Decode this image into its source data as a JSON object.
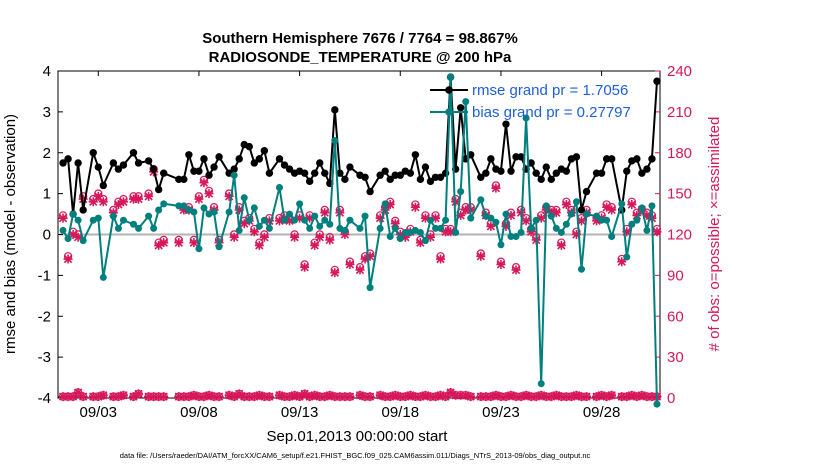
{
  "chart_data": {
    "type": "line",
    "title": "Southern Hemisphere 7676 / 7764 = 98.867%",
    "subtitle": "RADIOSONDE_TEMPERATURE @ 200 hPa",
    "xlabel": "Sep.01,2013 00:00:00 start",
    "ylabel": "rmse and bias (model - observation)",
    "ylabel_right": "# of obs: o=possible; ×=assimilated",
    "footnote": "data file: /Users/raeder/DAI/ATM_forcXX/CAM6_setup/f.e21.FHIST_BGC.f09_025.CAM6assim.011/Diags_NTrS_2013-09/obs_diag_output.nc",
    "xlim": [
      1.0,
      30.9
    ],
    "ylim": [
      -4,
      4
    ],
    "ylim_right": [
      0,
      240
    ],
    "x_ticks": [
      3,
      8,
      13,
      18,
      23,
      28
    ],
    "x_tick_labels": [
      "09/03",
      "09/08",
      "09/13",
      "09/18",
      "09/23",
      "09/28"
    ],
    "y_ticks": [
      -4,
      -3,
      -2,
      -1,
      0,
      1,
      2,
      3,
      4
    ],
    "y_tick_labels": [
      "-4",
      "-3",
      "-2",
      "-1",
      "0",
      "1",
      "2",
      "3",
      "4"
    ],
    "y_ticks_right": [
      0,
      30,
      60,
      90,
      120,
      150,
      180,
      210,
      240
    ],
    "y_tick_labels_right": [
      "0",
      "30",
      "60",
      "90",
      "120",
      "150",
      "180",
      "210",
      "240"
    ],
    "legend_position": "top-right",
    "grid": false,
    "colors": {
      "rmse": "#000000",
      "bias": "#007f7f",
      "obs": "#d6185b",
      "zero_line": "#b3b3b3"
    },
    "series": [
      {
        "name": "rmse grand pr = 1.7056",
        "x": [
          1.25,
          1.5,
          1.75,
          2,
          2.25,
          2.75,
          3,
          3.25,
          3.75,
          4,
          4.25,
          4.75,
          5,
          5.5,
          5.75,
          6,
          6.25,
          7,
          7.25,
          7.5,
          7.75,
          8,
          8.25,
          8.5,
          8.75,
          9,
          9.5,
          9.75,
          10,
          10.25,
          10.5,
          10.75,
          11,
          11.25,
          11.5,
          12,
          12.25,
          12.5,
          12.75,
          13,
          13.25,
          13.5,
          13.75,
          14,
          14.25,
          14.5,
          14.75,
          15,
          15.25,
          15.5,
          16,
          16.25,
          16.5,
          17,
          17.25,
          17.5,
          17.75,
          18,
          18.25,
          18.5,
          18.75,
          19,
          19.25,
          19.5,
          19.75,
          20,
          20.25,
          20.5,
          20.75,
          21,
          21.25,
          21.5,
          22,
          22.25,
          22.5,
          22.75,
          23,
          23.25,
          23.5,
          23.75,
          24,
          24.25,
          24.5,
          24.75,
          25,
          25.25,
          25.5,
          25.75,
          26,
          26.25,
          26.5,
          26.75,
          27,
          27.25,
          27.75,
          28,
          28.25,
          28.5,
          29,
          29.25,
          29.5,
          29.75,
          30,
          30.25,
          30.5,
          30.75
        ],
        "y": [
          1.75,
          1.85,
          0.5,
          1.75,
          0.6,
          2.0,
          1.65,
          1.2,
          1.75,
          1.6,
          1.7,
          2.0,
          1.75,
          1.8,
          1.6,
          1.1,
          1.5,
          1.35,
          1.35,
          1.95,
          1.55,
          1.55,
          1.85,
          1.45,
          1.65,
          1.9,
          1.5,
          1.6,
          1.85,
          2.2,
          2.15,
          1.75,
          1.85,
          2.05,
          1.5,
          1.85,
          1.7,
          1.6,
          1.5,
          1.55,
          1.5,
          1.3,
          1.5,
          1.75,
          1.5,
          1.25,
          3.05,
          1.5,
          1.35,
          1.65,
          1.45,
          1.4,
          1.05,
          1.45,
          1.55,
          1.35,
          1.45,
          1.45,
          1.55,
          1.5,
          1.95,
          1.35,
          1.65,
          1.3,
          1.4,
          1.4,
          1.5,
          3.85,
          1.6,
          3.1,
          1.85,
          1.95,
          1.4,
          1.5,
          1.85,
          1.6,
          1.55,
          2.7,
          1.55,
          1.9,
          1.9,
          1.6,
          1.75,
          1.5,
          1.35,
          1.65,
          1.35,
          1.5,
          1.6,
          1.55,
          1.85,
          1.9,
          0.6,
          1.05,
          1.5,
          1.5,
          1.85,
          1.85,
          0.6,
          1.55,
          1.8,
          1.85,
          1.5,
          1.6,
          1.85,
          3.75
        ]
      },
      {
        "name": "bias grand pr = 0.27797",
        "x": [
          1.25,
          1.5,
          1.75,
          2,
          2.25,
          2.75,
          3,
          3.25,
          3.75,
          4,
          4.25,
          4.75,
          5,
          5.5,
          5.75,
          6,
          6.25,
          7,
          7.25,
          7.5,
          7.75,
          8,
          8.25,
          8.5,
          8.75,
          9,
          9.5,
          9.75,
          10,
          10.25,
          10.5,
          10.75,
          11,
          11.25,
          11.5,
          12,
          12.25,
          12.5,
          12.75,
          13,
          13.25,
          13.5,
          13.75,
          14,
          14.25,
          14.5,
          14.75,
          15,
          15.25,
          15.5,
          16,
          16.25,
          16.5,
          17,
          17.25,
          17.5,
          17.75,
          18,
          18.25,
          18.5,
          18.75,
          19,
          19.25,
          19.5,
          19.75,
          20,
          20.25,
          20.5,
          20.75,
          21,
          21.25,
          21.5,
          22,
          22.25,
          22.5,
          22.75,
          23,
          23.25,
          23.5,
          23.75,
          24,
          24.25,
          24.5,
          24.75,
          25,
          25.25,
          25.5,
          25.75,
          26,
          26.25,
          26.5,
          26.75,
          27,
          27.25,
          27.75,
          28,
          28.25,
          28.5,
          29,
          29.25,
          29.5,
          29.75,
          30,
          30.25,
          30.5,
          30.75
        ],
        "y": [
          0.1,
          -0.1,
          0.5,
          0.35,
          -0.15,
          0.35,
          0.4,
          -1.05,
          0.45,
          0.15,
          0.35,
          0.25,
          0.15,
          0.45,
          0.15,
          0.6,
          0.75,
          0.7,
          0.7,
          0.6,
          0.55,
          -0.35,
          0.65,
          0.5,
          0.55,
          -0.3,
          0.55,
          1.45,
          0.1,
          0.9,
          0.35,
          0.65,
          0.2,
          0.35,
          0.15,
          1.15,
          0.35,
          0.5,
          0.35,
          0.75,
          0.35,
          0.15,
          0.45,
          0.2,
          0.35,
          0.25,
          2.3,
          0.15,
          0.1,
          0.35,
          0.15,
          0.45,
          -1.3,
          0.15,
          0.75,
          -0.05,
          0.15,
          -0.1,
          0.05,
          0.05,
          0.1,
          0.05,
          -0.15,
          0.35,
          0.15,
          0.15,
          0.35,
          3.85,
          0.05,
          1.05,
          3.25,
          0.4,
          0.85,
          0.45,
          0.4,
          0.3,
          -0.25,
          0.5,
          -0.05,
          -0.05,
          0.05,
          2.85,
          0.15,
          0.35,
          -3.65,
          0.7,
          0.45,
          0.15,
          0.05,
          0.25,
          0.5,
          0.8,
          -0.85,
          0.5,
          0.45,
          0.35,
          0.35,
          -0.05,
          0.75,
          -0.55,
          0.25,
          0.35,
          0.65,
          0.1,
          0.7,
          -4.15
        ]
      }
    ],
    "obs_counts": {
      "x": [
        1.25,
        1.5,
        1.75,
        2,
        2.25,
        2.75,
        3,
        3.25,
        3.75,
        4,
        4.25,
        4.75,
        5,
        5.5,
        5.75,
        6,
        6.25,
        7,
        7.25,
        7.5,
        7.75,
        8,
        8.25,
        8.5,
        8.75,
        9,
        9.5,
        9.75,
        10,
        10.25,
        10.5,
        10.75,
        11,
        11.25,
        11.5,
        12,
        12.25,
        12.5,
        12.75,
        13,
        13.25,
        13.5,
        13.75,
        14,
        14.25,
        14.5,
        14.75,
        15,
        15.25,
        15.5,
        16,
        16.25,
        16.5,
        17,
        17.25,
        17.5,
        17.75,
        18,
        18.25,
        18.5,
        18.75,
        19,
        19.25,
        19.5,
        19.75,
        20,
        20.25,
        20.5,
        20.75,
        21,
        21.25,
        21.5,
        22,
        22.25,
        22.5,
        22.75,
        23,
        23.25,
        23.5,
        23.75,
        24,
        24.25,
        24.5,
        24.75,
        25,
        25.25,
        25.5,
        25.75,
        26,
        26.25,
        26.5,
        26.75,
        27,
        27.25,
        27.75,
        28,
        28.25,
        28.5,
        29,
        29.25,
        29.5,
        29.75,
        30,
        30.25,
        30.5,
        30.75
      ],
      "possible_high": [
        134,
        104,
        122,
        120,
        148,
        146,
        150,
        146,
        138,
        144,
        146,
        148,
        148,
        150,
        168,
        114,
        116,
        116,
        140,
        140,
        116,
        148,
        160,
        152,
        140,
        116,
        150,
        120,
        140,
        130,
        132,
        124,
        114,
        120,
        132,
        132,
        134,
        132,
        120,
        134,
        98,
        134,
        114,
        120,
        138,
        118,
        94,
        138,
        122,
        100,
        96,
        104,
        106,
        134,
        140,
        144,
        130,
        122,
        120,
        124,
        142,
        116,
        134,
        120,
        134,
        104,
        124,
        124,
        146,
        136,
        140,
        140,
        106,
        136,
        128,
        156,
        100,
        128,
        136,
        96,
        138,
        132,
        124,
        118,
        134,
        140,
        138,
        138,
        114,
        144,
        138,
        122,
        132,
        138,
        132,
        134,
        142,
        140,
        102,
        124,
        144,
        136,
        138,
        136,
        134,
        124
      ],
      "assimilated_high": [
        132,
        102,
        120,
        118,
        146,
        144,
        148,
        144,
        136,
        142,
        144,
        146,
        146,
        148,
        166,
        112,
        114,
        114,
        138,
        138,
        114,
        146,
        158,
        150,
        138,
        114,
        148,
        118,
        138,
        128,
        130,
        122,
        112,
        118,
        130,
        130,
        132,
        130,
        118,
        132,
        96,
        132,
        112,
        118,
        136,
        116,
        92,
        136,
        120,
        98,
        94,
        102,
        104,
        132,
        138,
        142,
        128,
        120,
        118,
        122,
        140,
        114,
        132,
        118,
        132,
        102,
        122,
        122,
        144,
        134,
        138,
        138,
        104,
        134,
        126,
        154,
        98,
        126,
        134,
        94,
        136,
        130,
        122,
        116,
        132,
        138,
        136,
        136,
        112,
        142,
        136,
        120,
        130,
        136,
        130,
        132,
        140,
        138,
        100,
        122,
        142,
        134,
        138,
        134,
        132,
        122
      ],
      "possible_low": [
        1,
        1,
        1,
        4,
        1,
        1,
        1,
        2,
        1,
        1,
        2,
        1,
        3,
        1,
        1,
        1,
        1,
        1,
        1,
        1,
        2,
        1,
        1,
        2,
        1,
        1,
        2,
        1,
        3,
        1,
        1,
        1,
        2,
        1,
        1,
        2,
        1,
        1,
        2,
        1,
        3,
        1,
        2,
        1,
        1,
        2,
        1,
        1,
        1,
        1,
        2,
        1,
        1,
        2,
        1,
        1,
        2,
        1,
        1,
        2,
        1,
        1,
        2,
        1,
        1,
        2,
        1,
        4,
        2,
        2,
        2,
        1,
        1,
        1,
        1,
        2,
        1,
        1,
        2,
        1,
        1,
        2,
        1,
        1,
        2,
        1,
        1,
        2,
        1,
        1,
        1,
        2,
        1,
        1,
        1,
        2,
        1,
        2,
        1,
        1,
        2,
        1,
        2,
        1,
        1,
        1
      ]
    },
    "legend": {
      "rmse_label": "rmse grand pr = 1.7056",
      "bias_label": "bias grand pr = 0.27797"
    }
  }
}
